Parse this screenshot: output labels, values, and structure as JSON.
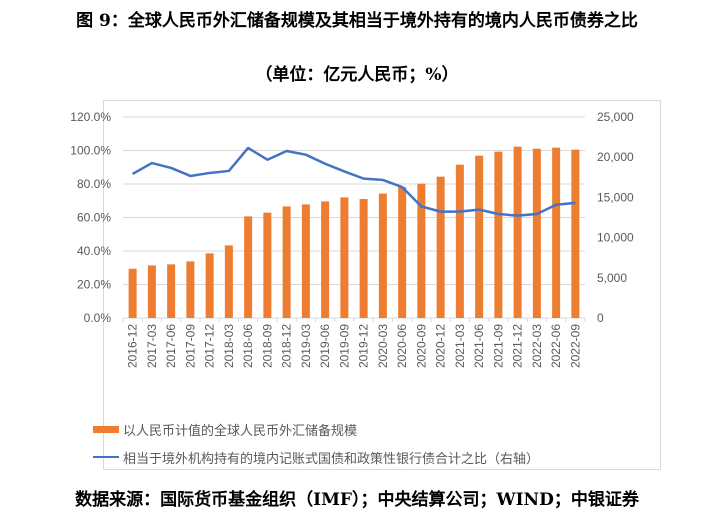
{
  "title": "图 9：全球人民币外汇储备规模及其相当于境外持有的境内人民币债券之比",
  "subtitle": "（单位：亿元人民币；%）",
  "source": "数据来源：国际货币基金组织（IMF）；中央结算公司；WIND；中银证券",
  "chart_data": {
    "type": "bar+line",
    "categories": [
      "2016-12",
      "2017-03",
      "2017-06",
      "2017-09",
      "2017-12",
      "2018-03",
      "2018-06",
      "2018-09",
      "2018-12",
      "2019-03",
      "2019-06",
      "2019-09",
      "2019-12",
      "2020-03",
      "2020-06",
      "2020-09",
      "2020-12",
      "2021-03",
      "2021-06",
      "2021-09",
      "2021-12",
      "2022-03",
      "2022-06",
      "2022-09"
    ],
    "left_axis": {
      "ylim": [
        0,
        120
      ],
      "ticks": [
        "0.0%",
        "20.0%",
        "40.0%",
        "60.0%",
        "80.0%",
        "100.0%",
        "120.0%"
      ]
    },
    "right_axis": {
      "ylim": [
        0,
        25000
      ],
      "ticks": [
        "0",
        "5,000",
        "10,000",
        "15,000",
        "20,000",
        "25,000"
      ]
    },
    "grid": true,
    "legend_position": "bottom",
    "series": [
      {
        "name": "以人民币计值的全球人民币外汇储备规模",
        "type": "bar",
        "axis": "right",
        "color": "#ed7d31",
        "values": [
          6130,
          6540,
          6670,
          7040,
          8040,
          9030,
          12640,
          13100,
          13880,
          14130,
          14500,
          15000,
          14800,
          15470,
          16300,
          16710,
          17580,
          19070,
          20190,
          20690,
          21310,
          21060,
          21190,
          20940
        ]
      },
      {
        "name": "相当于境外机构持有的境内记账式国债和政策性银行债合计之比（右轴）",
        "type": "line",
        "axis": "left",
        "color": "#4472c4",
        "values": [
          86.0,
          92.5,
          89.6,
          84.8,
          86.6,
          87.8,
          101.5,
          94.5,
          99.7,
          97.5,
          92.1,
          87.5,
          83.2,
          82.4,
          78.2,
          66.6,
          63.5,
          63.5,
          64.7,
          62.1,
          61.1,
          62.1,
          67.6,
          68.7
        ]
      }
    ]
  }
}
